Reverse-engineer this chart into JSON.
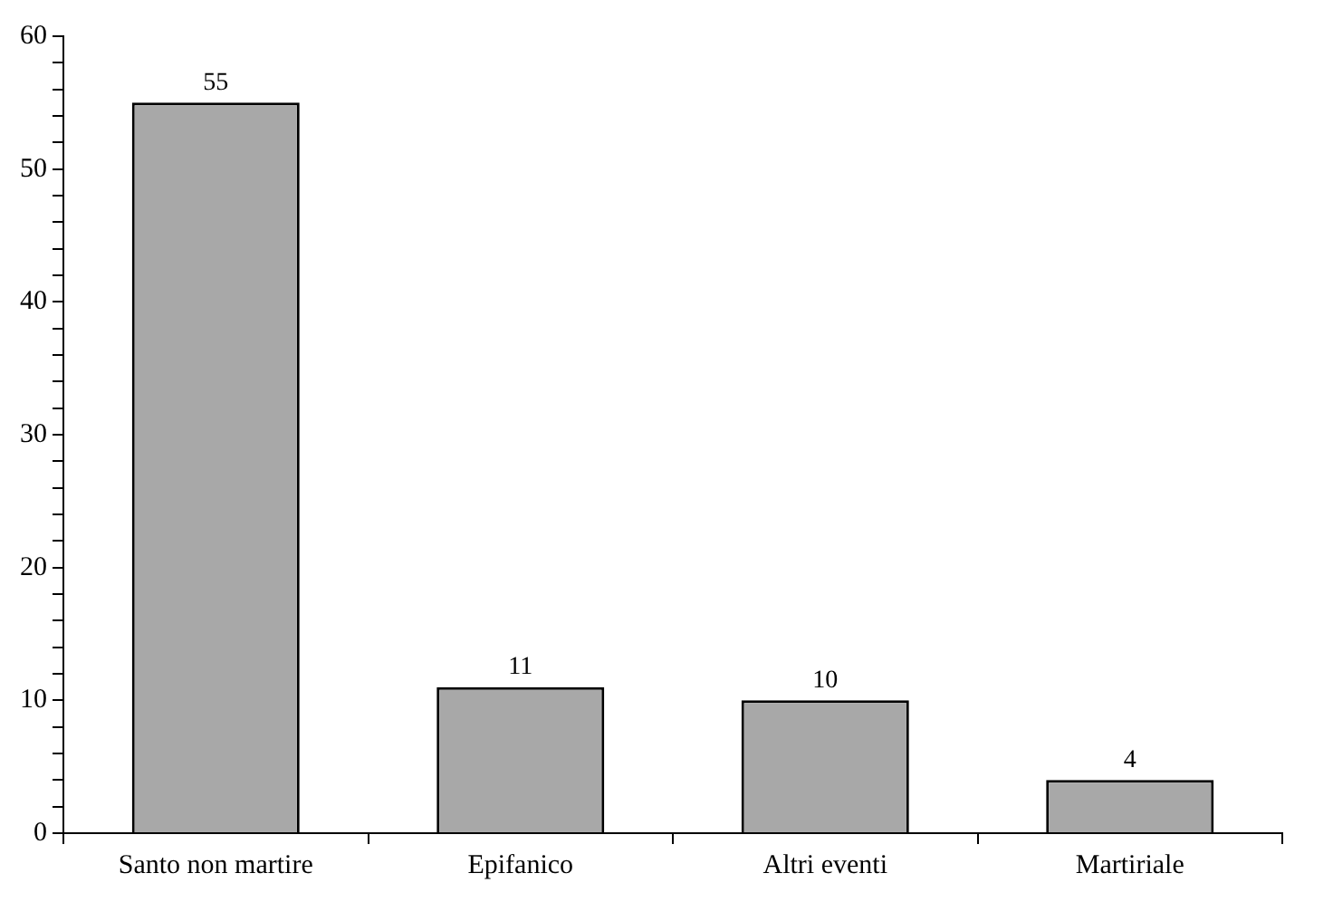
{
  "chart_data": {
    "type": "bar",
    "categories": [
      "Santo non martire",
      "Epifanico",
      "Altri eventi",
      "Martiriale"
    ],
    "values": [
      55,
      11,
      10,
      4
    ],
    "color": "#a8a8a8",
    "ylim": [
      0,
      60
    ],
    "yticks": [
      0,
      {
        "value": 2,
        "label": null
      },
      {
        "value": 4,
        "label": null
      },
      {
        "value": 6,
        "label": null
      },
      {
        "value": 8,
        "label": null
      },
      10,
      {
        "value": 12,
        "label": null
      },
      {
        "value": 14,
        "label": null
      },
      {
        "value": 16,
        "label": null
      },
      {
        "value": 18,
        "label": null
      },
      20,
      {
        "value": 22,
        "label": null
      },
      {
        "value": 24,
        "label": null
      },
      {
        "value": 26,
        "label": null
      },
      {
        "value": 28,
        "label": null
      },
      30,
      {
        "value": 32,
        "label": null
      },
      {
        "value": 34,
        "label": null
      },
      {
        "value": 36,
        "label": null
      },
      {
        "value": 38,
        "label": null
      },
      40,
      {
        "value": 42,
        "label": null
      },
      {
        "value": 44,
        "label": null
      },
      {
        "value": 46,
        "label": null
      },
      {
        "value": 48,
        "label": null
      },
      50,
      {
        "value": 52,
        "label": null
      },
      {
        "value": 54,
        "label": null
      },
      {
        "value": 56,
        "label": null
      },
      {
        "value": 58,
        "label": null
      },
      60
    ],
    "grid": false,
    "legend": false,
    "data_labels": true
  }
}
